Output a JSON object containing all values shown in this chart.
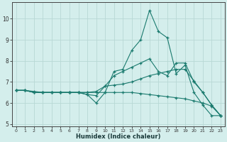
{
  "xlabel": "Humidex (Indice chaleur)",
  "bg_color": "#d4eeec",
  "grid_color": "#b8d8d5",
  "line_color": "#1a7a6e",
  "x_values": [
    0,
    1,
    2,
    3,
    4,
    5,
    6,
    7,
    8,
    9,
    10,
    11,
    12,
    13,
    14,
    15,
    16,
    17,
    18,
    19,
    20,
    21,
    22,
    23
  ],
  "line1": [
    6.6,
    6.6,
    6.5,
    6.5,
    6.5,
    6.5,
    6.5,
    6.5,
    6.4,
    6.0,
    6.5,
    7.5,
    7.6,
    8.5,
    9.0,
    10.4,
    9.4,
    9.1,
    7.4,
    7.8,
    6.5,
    5.9,
    5.4,
    5.4
  ],
  "line2": [
    6.6,
    6.6,
    6.5,
    6.5,
    6.5,
    6.5,
    6.5,
    6.5,
    6.4,
    6.35,
    6.8,
    7.3,
    7.5,
    7.7,
    7.9,
    8.1,
    7.5,
    7.3,
    7.9,
    7.9,
    7.0,
    6.5,
    5.9,
    5.4
  ],
  "line3": [
    6.6,
    6.6,
    6.5,
    6.5,
    6.5,
    6.5,
    6.5,
    6.5,
    6.5,
    6.55,
    6.8,
    6.85,
    6.9,
    7.0,
    7.15,
    7.3,
    7.4,
    7.5,
    7.6,
    7.6,
    7.05,
    6.5,
    5.9,
    5.4
  ],
  "line4": [
    6.6,
    6.6,
    6.55,
    6.5,
    6.5,
    6.5,
    6.5,
    6.5,
    6.5,
    6.5,
    6.5,
    6.5,
    6.5,
    6.5,
    6.45,
    6.4,
    6.35,
    6.3,
    6.25,
    6.2,
    6.1,
    6.0,
    5.85,
    5.4
  ],
  "ylim": [
    4.9,
    10.8
  ],
  "xlim": [
    -0.5,
    23.5
  ],
  "yticks": [
    5,
    6,
    7,
    8,
    9,
    10
  ],
  "xticks": [
    0,
    1,
    2,
    3,
    4,
    5,
    6,
    7,
    8,
    9,
    10,
    11,
    12,
    13,
    14,
    15,
    16,
    17,
    18,
    19,
    20,
    21,
    22,
    23
  ]
}
